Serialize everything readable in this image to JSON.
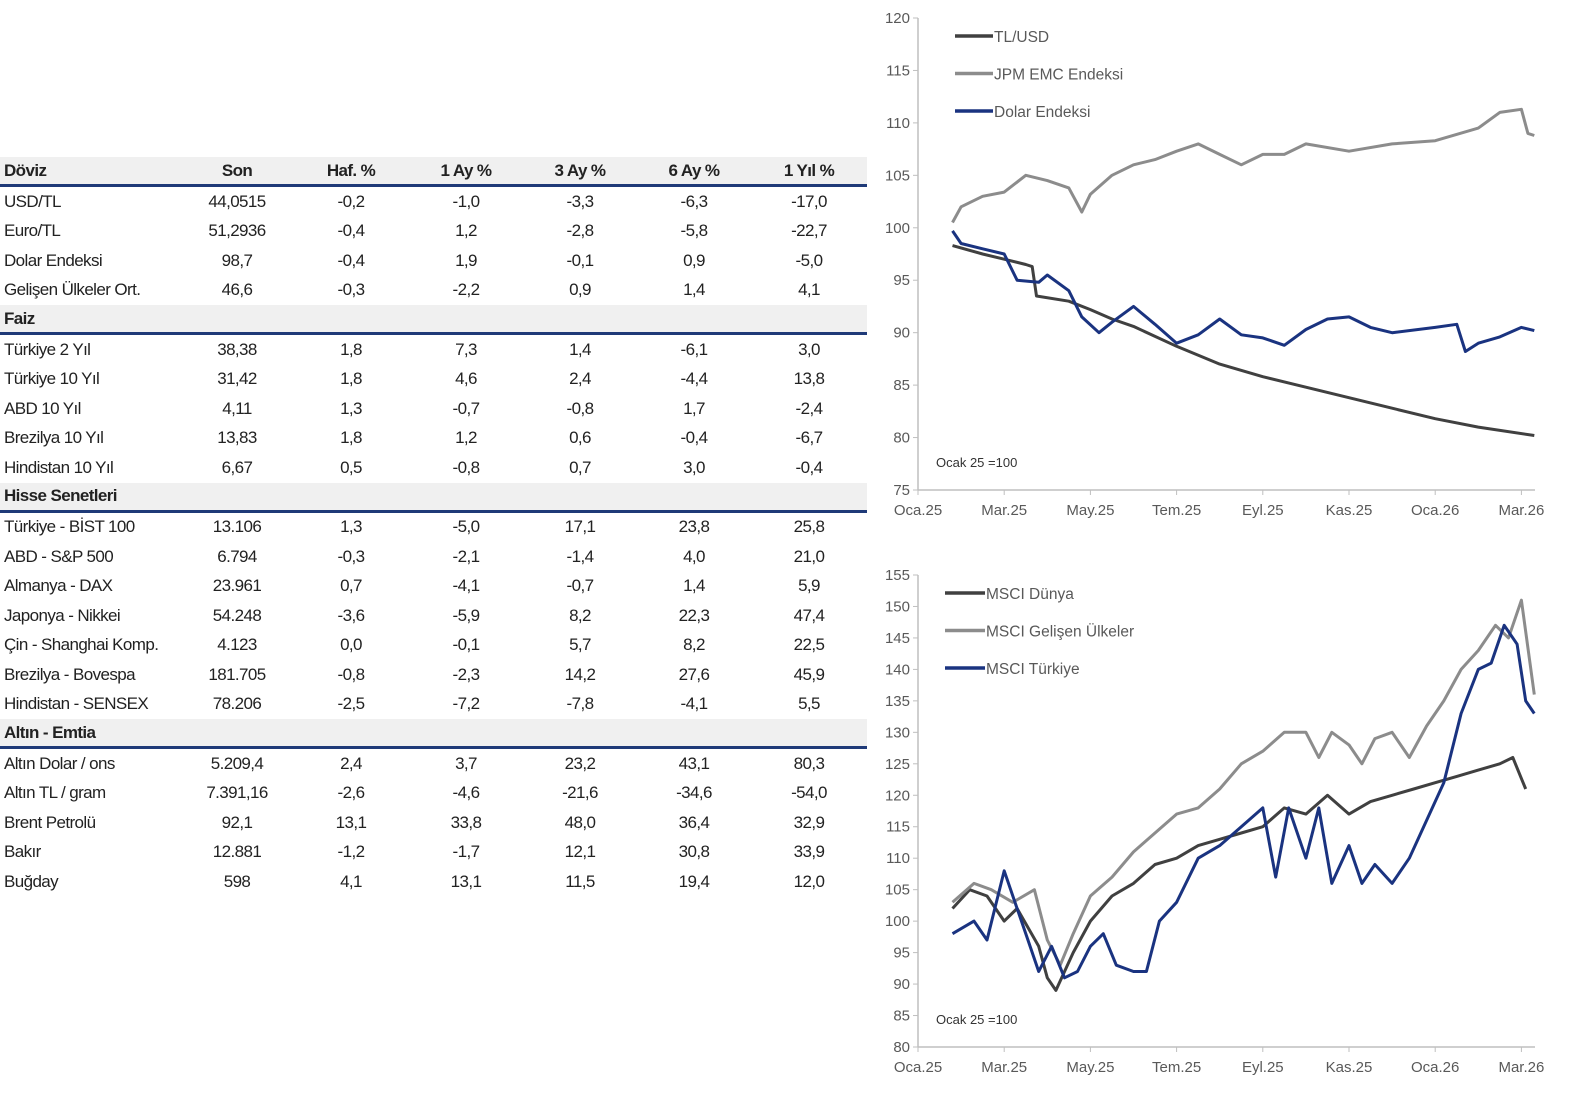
{
  "table": {
    "columns": [
      "Son",
      "Haf. %",
      "1 Ay %",
      "3 Ay %",
      "6 Ay %",
      "1 Yıl %"
    ],
    "sections": [
      {
        "title": "Döviz",
        "rows": [
          [
            "USD/TL",
            "44,0515",
            "-0,2",
            "-1,0",
            "-3,3",
            "-6,3",
            "-17,0"
          ],
          [
            "Euro/TL",
            "51,2936",
            "-0,4",
            "1,2",
            "-2,8",
            "-5,8",
            "-22,7"
          ],
          [
            "Dolar Endeksi",
            "98,7",
            "-0,4",
            "1,9",
            "-0,1",
            "0,9",
            "-5,0"
          ],
          [
            "Gelişen Ülkeler Ort.",
            "46,6",
            "-0,3",
            "-2,2",
            "0,9",
            "1,4",
            "4,1"
          ]
        ]
      },
      {
        "title": "Faiz",
        "rows": [
          [
            "Türkiye 2 Yıl",
            "38,38",
            "1,8",
            "7,3",
            "1,4",
            "-6,1",
            "3,0"
          ],
          [
            "Türkiye 10 Yıl",
            "31,42",
            "1,8",
            "4,6",
            "2,4",
            "-4,4",
            "13,8"
          ],
          [
            "ABD 10 Yıl",
            "4,11",
            "1,3",
            "-0,7",
            "-0,8",
            "1,7",
            "-2,4"
          ],
          [
            "Brezilya 10 Yıl",
            "13,83",
            "1,8",
            "1,2",
            "0,6",
            "-0,4",
            "-6,7"
          ],
          [
            "Hindistan 10 Yıl",
            "6,67",
            "0,5",
            "-0,8",
            "0,7",
            "3,0",
            "-0,4"
          ]
        ]
      },
      {
        "title": "Hisse Senetleri",
        "rows": [
          [
            "Türkiye - BİST 100",
            "13.106",
            "1,3",
            "-5,0",
            "17,1",
            "23,8",
            "25,8"
          ],
          [
            "ABD - S&P 500",
            "6.794",
            "-0,3",
            "-2,1",
            "-1,4",
            "4,0",
            "21,0"
          ],
          [
            "Almanya - DAX",
            "23.961",
            "0,7",
            "-4,1",
            "-0,7",
            "1,4",
            "5,9"
          ],
          [
            "Japonya - Nikkei",
            "54.248",
            "-3,6",
            "-5,9",
            "8,2",
            "22,3",
            "47,4"
          ],
          [
            "Çin - Shanghai Komp.",
            "4.123",
            "0,0",
            "-0,1",
            "5,7",
            "8,2",
            "22,5"
          ],
          [
            "Brezilya - Bovespa",
            "181.705",
            "-0,8",
            "-2,3",
            "14,2",
            "27,6",
            "45,9"
          ],
          [
            "Hindistan - SENSEX",
            "78.206",
            "-2,5",
            "-7,2",
            "-7,8",
            "-4,1",
            "5,5"
          ]
        ]
      },
      {
        "title": "Altın - Emtia",
        "rows": [
          [
            "Altın Dolar / ons",
            "5.209,4",
            "2,4",
            "3,7",
            "23,2",
            "43,1",
            "80,3"
          ],
          [
            "Altın TL / gram",
            "7.391,16",
            "-2,6",
            "-4,6",
            "-21,6",
            "-34,6",
            "-54,0"
          ],
          [
            "Brent Petrolü",
            "92,1",
            "13,1",
            "33,8",
            "48,0",
            "36,4",
            "32,9"
          ],
          [
            "Bakır",
            "12.881",
            "-1,2",
            "-1,7",
            "12,1",
            "30,8",
            "33,9"
          ],
          [
            "Buğday",
            "598",
            "4,1",
            "13,1",
            "11,5",
            "19,4",
            "12,0"
          ]
        ]
      }
    ]
  },
  "colors": {
    "dark": "#404040",
    "gray": "#8c8c8c",
    "blue": "#1a3380",
    "axis": "#bfbfbf",
    "rule": "#1f3a78"
  },
  "chart_data": [
    {
      "type": "line",
      "title": "",
      "note": "Ocak 25 =100",
      "xlabel": "",
      "ylabel": "",
      "x_ticks": [
        "Oca.25",
        "Mar.25",
        "May.25",
        "Tem.25",
        "Eyl.25",
        "Kas.25",
        "Oca.26",
        "Mar.26"
      ],
      "x_unit": "months since Oca.25",
      "xlim": [
        0,
        14.3
      ],
      "ylim": [
        75,
        120
      ],
      "y_ticks": [
        75,
        80,
        85,
        90,
        95,
        100,
        105,
        110,
        115,
        120
      ],
      "legend": "top-left",
      "series": [
        {
          "name": "TL/USD",
          "color": "#404040",
          "points": [
            [
              0.8,
              98.3
            ],
            [
              1.5,
              97.5
            ],
            [
              2,
              97
            ],
            [
              2.5,
              96.5
            ],
            [
              2.65,
              96.3
            ],
            [
              2.75,
              93.5
            ],
            [
              3.5,
              93
            ],
            [
              4,
              92.2
            ],
            [
              4.5,
              91.3
            ],
            [
              5,
              90.6
            ],
            [
              6,
              88.7
            ],
            [
              7,
              87
            ],
            [
              8,
              85.8
            ],
            [
              9,
              84.8
            ],
            [
              10,
              83.8
            ],
            [
              11,
              82.8
            ],
            [
              12,
              81.8
            ],
            [
              13,
              81
            ],
            [
              14.3,
              80.2
            ]
          ]
        },
        {
          "name": "JPM EMC Endeksi",
          "color": "#8c8c8c",
          "points": [
            [
              0.8,
              100.5
            ],
            [
              1,
              102
            ],
            [
              1.5,
              103
            ],
            [
              2,
              103.4
            ],
            [
              2.5,
              105
            ],
            [
              3,
              104.5
            ],
            [
              3.5,
              103.8
            ],
            [
              3.8,
              101.5
            ],
            [
              4,
              103.2
            ],
            [
              4.5,
              105
            ],
            [
              5,
              106
            ],
            [
              5.5,
              106.5
            ],
            [
              6,
              107.3
            ],
            [
              6.5,
              108
            ],
            [
              7,
              107
            ],
            [
              7.5,
              106
            ],
            [
              8,
              107
            ],
            [
              8.5,
              107
            ],
            [
              9,
              108
            ],
            [
              10,
              107.3
            ],
            [
              11,
              108
            ],
            [
              12,
              108.3
            ],
            [
              13,
              109.5
            ],
            [
              13.5,
              111
            ],
            [
              14,
              111.3
            ],
            [
              14.15,
              109
            ],
            [
              14.3,
              108.8
            ]
          ]
        },
        {
          "name": "Dolar Endeksi",
          "color": "#1a3380",
          "points": [
            [
              0.8,
              99.7
            ],
            [
              1,
              98.5
            ],
            [
              1.5,
              98
            ],
            [
              2,
              97.5
            ],
            [
              2.3,
              95
            ],
            [
              2.8,
              94.8
            ],
            [
              3,
              95.5
            ],
            [
              3.5,
              94
            ],
            [
              3.8,
              91.5
            ],
            [
              4.2,
              90
            ],
            [
              4.5,
              91
            ],
            [
              5,
              92.5
            ],
            [
              5.5,
              90.8
            ],
            [
              6,
              89
            ],
            [
              6.5,
              89.8
            ],
            [
              7,
              91.3
            ],
            [
              7.5,
              89.8
            ],
            [
              8,
              89.5
            ],
            [
              8.5,
              88.8
            ],
            [
              9,
              90.3
            ],
            [
              9.5,
              91.3
            ],
            [
              10,
              91.5
            ],
            [
              10.5,
              90.5
            ],
            [
              11,
              90
            ],
            [
              12,
              90.5
            ],
            [
              12.5,
              90.8
            ],
            [
              12.7,
              88.2
            ],
            [
              13,
              89
            ],
            [
              13.5,
              89.6
            ],
            [
              14,
              90.5
            ],
            [
              14.3,
              90.2
            ]
          ]
        }
      ]
    },
    {
      "type": "line",
      "title": "",
      "note": "Ocak 25 =100",
      "xlabel": "",
      "ylabel": "",
      "x_ticks": [
        "Oca.25",
        "Mar.25",
        "May.25",
        "Tem.25",
        "Eyl.25",
        "Kas.25",
        "Oca.26",
        "Mar.26"
      ],
      "x_unit": "months since Oca.25",
      "xlim": [
        0,
        14.3
      ],
      "ylim": [
        80,
        155
      ],
      "y_ticks": [
        80,
        85,
        90,
        95,
        100,
        105,
        110,
        115,
        120,
        125,
        130,
        135,
        140,
        145,
        150,
        155
      ],
      "legend": "top-left",
      "series": [
        {
          "name": "MSCI Dünya",
          "color": "#404040",
          "points": [
            [
              0.8,
              102
            ],
            [
              1.2,
              105
            ],
            [
              1.6,
              104
            ],
            [
              2,
              100
            ],
            [
              2.3,
              102
            ],
            [
              2.8,
              96
            ],
            [
              3,
              91
            ],
            [
              3.2,
              89
            ],
            [
              3.6,
              95
            ],
            [
              4,
              100
            ],
            [
              4.5,
              104
            ],
            [
              5,
              106
            ],
            [
              5.5,
              109
            ],
            [
              6,
              110
            ],
            [
              6.5,
              112
            ],
            [
              7,
              113
            ],
            [
              7.5,
              114
            ],
            [
              8,
              115
            ],
            [
              8.5,
              118
            ],
            [
              9,
              117
            ],
            [
              9.5,
              120
            ],
            [
              10,
              117
            ],
            [
              10.5,
              119
            ],
            [
              11,
              120
            ],
            [
              11.5,
              121
            ],
            [
              12,
              122
            ],
            [
              12.5,
              123
            ],
            [
              13,
              124
            ],
            [
              13.5,
              125
            ],
            [
              13.8,
              126
            ],
            [
              14.1,
              121
            ]
          ]
        },
        {
          "name": "MSCI Gelişen Ülkeler",
          "color": "#8c8c8c",
          "points": [
            [
              0.8,
              103
            ],
            [
              1.3,
              106
            ],
            [
              1.7,
              105
            ],
            [
              2.2,
              103
            ],
            [
              2.7,
              105
            ],
            [
              3,
              97
            ],
            [
              3.3,
              93
            ],
            [
              3.6,
              98
            ],
            [
              4,
              104
            ],
            [
              4.5,
              107
            ],
            [
              5,
              111
            ],
            [
              5.5,
              114
            ],
            [
              6,
              117
            ],
            [
              6.5,
              118
            ],
            [
              7,
              121
            ],
            [
              7.5,
              125
            ],
            [
              8,
              127
            ],
            [
              8.5,
              130
            ],
            [
              9,
              130
            ],
            [
              9.3,
              126
            ],
            [
              9.6,
              130
            ],
            [
              10,
              128
            ],
            [
              10.3,
              125
            ],
            [
              10.6,
              129
            ],
            [
              11,
              130
            ],
            [
              11.4,
              126
            ],
            [
              11.8,
              131
            ],
            [
              12.2,
              135
            ],
            [
              12.6,
              140
            ],
            [
              13,
              143
            ],
            [
              13.4,
              147
            ],
            [
              13.7,
              145
            ],
            [
              14,
              151
            ],
            [
              14.3,
              136
            ]
          ]
        },
        {
          "name": "MSCI Türkiye",
          "color": "#1a3380",
          "points": [
            [
              0.8,
              98
            ],
            [
              1.3,
              100
            ],
            [
              1.6,
              97
            ],
            [
              2,
              108
            ],
            [
              2.3,
              102
            ],
            [
              2.5,
              98
            ],
            [
              2.8,
              92
            ],
            [
              3.1,
              96
            ],
            [
              3.4,
              91
            ],
            [
              3.7,
              92
            ],
            [
              4,
              96
            ],
            [
              4.3,
              98
            ],
            [
              4.6,
              93
            ],
            [
              5,
              92
            ],
            [
              5.3,
              92
            ],
            [
              5.6,
              100
            ],
            [
              6,
              103
            ],
            [
              6.5,
              110
            ],
            [
              7,
              112
            ],
            [
              7.5,
              115
            ],
            [
              8,
              118
            ],
            [
              8.3,
              107
            ],
            [
              8.6,
              118
            ],
            [
              9,
              110
            ],
            [
              9.3,
              118
            ],
            [
              9.6,
              106
            ],
            [
              10,
              112
            ],
            [
              10.3,
              106
            ],
            [
              10.6,
              109
            ],
            [
              11,
              106
            ],
            [
              11.4,
              110
            ],
            [
              11.8,
              116
            ],
            [
              12.2,
              122
            ],
            [
              12.6,
              133
            ],
            [
              13,
              140
            ],
            [
              13.3,
              141
            ],
            [
              13.6,
              147
            ],
            [
              13.9,
              144
            ],
            [
              14.1,
              135
            ],
            [
              14.3,
              133
            ]
          ]
        }
      ]
    }
  ]
}
